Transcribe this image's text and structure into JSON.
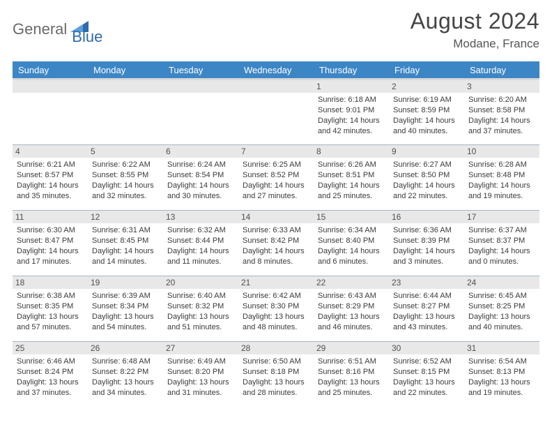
{
  "logo": {
    "part1": "General",
    "part2": "Blue"
  },
  "title": "August 2024",
  "location": "Modane, France",
  "colors": {
    "header_bg": "#3d86c6",
    "header_text": "#ffffff",
    "band_bg": "#e8e8e8",
    "border": "#a8b5c4",
    "brand_blue": "#2f6aad",
    "logo_gray": "#6a6a6a"
  },
  "dayNames": [
    "Sunday",
    "Monday",
    "Tuesday",
    "Wednesday",
    "Thursday",
    "Friday",
    "Saturday"
  ],
  "weeks": [
    [
      {
        "n": "",
        "sunrise": "",
        "sunset": "",
        "daylight": ""
      },
      {
        "n": "",
        "sunrise": "",
        "sunset": "",
        "daylight": ""
      },
      {
        "n": "",
        "sunrise": "",
        "sunset": "",
        "daylight": ""
      },
      {
        "n": "",
        "sunrise": "",
        "sunset": "",
        "daylight": ""
      },
      {
        "n": "1",
        "sunrise": "Sunrise: 6:18 AM",
        "sunset": "Sunset: 9:01 PM",
        "daylight": "Daylight: 14 hours and 42 minutes."
      },
      {
        "n": "2",
        "sunrise": "Sunrise: 6:19 AM",
        "sunset": "Sunset: 8:59 PM",
        "daylight": "Daylight: 14 hours and 40 minutes."
      },
      {
        "n": "3",
        "sunrise": "Sunrise: 6:20 AM",
        "sunset": "Sunset: 8:58 PM",
        "daylight": "Daylight: 14 hours and 37 minutes."
      }
    ],
    [
      {
        "n": "4",
        "sunrise": "Sunrise: 6:21 AM",
        "sunset": "Sunset: 8:57 PM",
        "daylight": "Daylight: 14 hours and 35 minutes."
      },
      {
        "n": "5",
        "sunrise": "Sunrise: 6:22 AM",
        "sunset": "Sunset: 8:55 PM",
        "daylight": "Daylight: 14 hours and 32 minutes."
      },
      {
        "n": "6",
        "sunrise": "Sunrise: 6:24 AM",
        "sunset": "Sunset: 8:54 PM",
        "daylight": "Daylight: 14 hours and 30 minutes."
      },
      {
        "n": "7",
        "sunrise": "Sunrise: 6:25 AM",
        "sunset": "Sunset: 8:52 PM",
        "daylight": "Daylight: 14 hours and 27 minutes."
      },
      {
        "n": "8",
        "sunrise": "Sunrise: 6:26 AM",
        "sunset": "Sunset: 8:51 PM",
        "daylight": "Daylight: 14 hours and 25 minutes."
      },
      {
        "n": "9",
        "sunrise": "Sunrise: 6:27 AM",
        "sunset": "Sunset: 8:50 PM",
        "daylight": "Daylight: 14 hours and 22 minutes."
      },
      {
        "n": "10",
        "sunrise": "Sunrise: 6:28 AM",
        "sunset": "Sunset: 8:48 PM",
        "daylight": "Daylight: 14 hours and 19 minutes."
      }
    ],
    [
      {
        "n": "11",
        "sunrise": "Sunrise: 6:30 AM",
        "sunset": "Sunset: 8:47 PM",
        "daylight": "Daylight: 14 hours and 17 minutes."
      },
      {
        "n": "12",
        "sunrise": "Sunrise: 6:31 AM",
        "sunset": "Sunset: 8:45 PM",
        "daylight": "Daylight: 14 hours and 14 minutes."
      },
      {
        "n": "13",
        "sunrise": "Sunrise: 6:32 AM",
        "sunset": "Sunset: 8:44 PM",
        "daylight": "Daylight: 14 hours and 11 minutes."
      },
      {
        "n": "14",
        "sunrise": "Sunrise: 6:33 AM",
        "sunset": "Sunset: 8:42 PM",
        "daylight": "Daylight: 14 hours and 8 minutes."
      },
      {
        "n": "15",
        "sunrise": "Sunrise: 6:34 AM",
        "sunset": "Sunset: 8:40 PM",
        "daylight": "Daylight: 14 hours and 6 minutes."
      },
      {
        "n": "16",
        "sunrise": "Sunrise: 6:36 AM",
        "sunset": "Sunset: 8:39 PM",
        "daylight": "Daylight: 14 hours and 3 minutes."
      },
      {
        "n": "17",
        "sunrise": "Sunrise: 6:37 AM",
        "sunset": "Sunset: 8:37 PM",
        "daylight": "Daylight: 14 hours and 0 minutes."
      }
    ],
    [
      {
        "n": "18",
        "sunrise": "Sunrise: 6:38 AM",
        "sunset": "Sunset: 8:35 PM",
        "daylight": "Daylight: 13 hours and 57 minutes."
      },
      {
        "n": "19",
        "sunrise": "Sunrise: 6:39 AM",
        "sunset": "Sunset: 8:34 PM",
        "daylight": "Daylight: 13 hours and 54 minutes."
      },
      {
        "n": "20",
        "sunrise": "Sunrise: 6:40 AM",
        "sunset": "Sunset: 8:32 PM",
        "daylight": "Daylight: 13 hours and 51 minutes."
      },
      {
        "n": "21",
        "sunrise": "Sunrise: 6:42 AM",
        "sunset": "Sunset: 8:30 PM",
        "daylight": "Daylight: 13 hours and 48 minutes."
      },
      {
        "n": "22",
        "sunrise": "Sunrise: 6:43 AM",
        "sunset": "Sunset: 8:29 PM",
        "daylight": "Daylight: 13 hours and 46 minutes."
      },
      {
        "n": "23",
        "sunrise": "Sunrise: 6:44 AM",
        "sunset": "Sunset: 8:27 PM",
        "daylight": "Daylight: 13 hours and 43 minutes."
      },
      {
        "n": "24",
        "sunrise": "Sunrise: 6:45 AM",
        "sunset": "Sunset: 8:25 PM",
        "daylight": "Daylight: 13 hours and 40 minutes."
      }
    ],
    [
      {
        "n": "25",
        "sunrise": "Sunrise: 6:46 AM",
        "sunset": "Sunset: 8:24 PM",
        "daylight": "Daylight: 13 hours and 37 minutes."
      },
      {
        "n": "26",
        "sunrise": "Sunrise: 6:48 AM",
        "sunset": "Sunset: 8:22 PM",
        "daylight": "Daylight: 13 hours and 34 minutes."
      },
      {
        "n": "27",
        "sunrise": "Sunrise: 6:49 AM",
        "sunset": "Sunset: 8:20 PM",
        "daylight": "Daylight: 13 hours and 31 minutes."
      },
      {
        "n": "28",
        "sunrise": "Sunrise: 6:50 AM",
        "sunset": "Sunset: 8:18 PM",
        "daylight": "Daylight: 13 hours and 28 minutes."
      },
      {
        "n": "29",
        "sunrise": "Sunrise: 6:51 AM",
        "sunset": "Sunset: 8:16 PM",
        "daylight": "Daylight: 13 hours and 25 minutes."
      },
      {
        "n": "30",
        "sunrise": "Sunrise: 6:52 AM",
        "sunset": "Sunset: 8:15 PM",
        "daylight": "Daylight: 13 hours and 22 minutes."
      },
      {
        "n": "31",
        "sunrise": "Sunrise: 6:54 AM",
        "sunset": "Sunset: 8:13 PM",
        "daylight": "Daylight: 13 hours and 19 minutes."
      }
    ]
  ]
}
